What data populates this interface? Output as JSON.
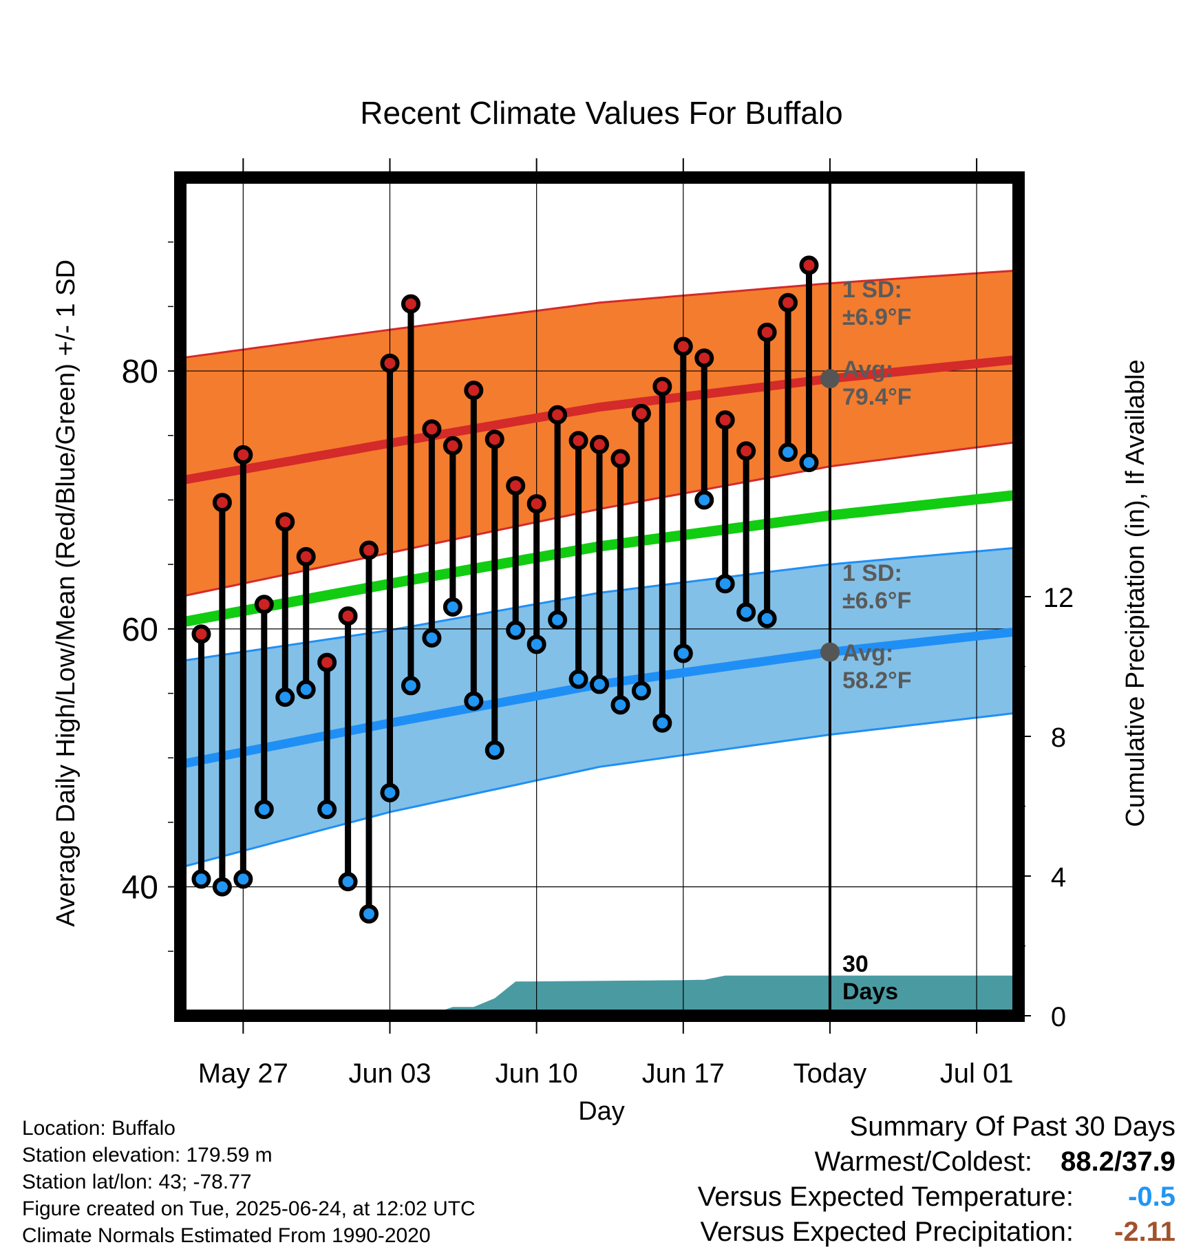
{
  "chart_data": {
    "type": "line",
    "title": "Recent Climate Values For Buffalo",
    "xlabel": "Day",
    "ylabel": "Average Daily High/Low/Mean (Red/Blue/Green) +/- 1 SD",
    "y2label": "Cumulative Precipitation (in), If Available",
    "x_ticks": [
      "May 27",
      "Jun 03",
      "Jun 10",
      "Jun 17",
      "Today",
      "Jul 01"
    ],
    "x_tick_days": [
      "2025-05-27",
      "2025-06-03",
      "2025-06-10",
      "2025-06-17",
      "2025-06-24",
      "2025-07-01"
    ],
    "xlim": [
      "2025-05-24",
      "2025-07-03"
    ],
    "ylim": [
      30,
      95
    ],
    "y_ticks": [
      40,
      60,
      80
    ],
    "y2lim": [
      0,
      24
    ],
    "y2_ticks": [
      0,
      4,
      8,
      12
    ],
    "grid": true,
    "daily": {
      "dates": [
        "2025-05-25",
        "2025-05-26",
        "2025-05-27",
        "2025-05-28",
        "2025-05-29",
        "2025-05-30",
        "2025-05-31",
        "2025-06-01",
        "2025-06-02",
        "2025-06-03",
        "2025-06-04",
        "2025-06-05",
        "2025-06-06",
        "2025-06-07",
        "2025-06-08",
        "2025-06-09",
        "2025-06-10",
        "2025-06-11",
        "2025-06-12",
        "2025-06-13",
        "2025-06-14",
        "2025-06-15",
        "2025-06-16",
        "2025-06-17",
        "2025-06-18",
        "2025-06-19",
        "2025-06-20",
        "2025-06-21",
        "2025-06-22",
        "2025-06-23"
      ],
      "high": [
        59.6,
        69.8,
        73.5,
        61.9,
        68.3,
        65.6,
        57.4,
        61.0,
        66.1,
        80.6,
        85.2,
        75.5,
        74.2,
        78.5,
        74.7,
        71.1,
        69.7,
        76.6,
        74.6,
        74.3,
        73.2,
        76.7,
        78.8,
        81.9,
        81.0,
        76.2,
        73.8,
        83.0,
        85.3,
        88.2
      ],
      "low": [
        40.6,
        40.0,
        40.6,
        46.0,
        54.7,
        55.3,
        46.0,
        40.4,
        37.9,
        47.3,
        55.6,
        59.3,
        61.7,
        54.4,
        50.6,
        59.9,
        58.8,
        60.7,
        56.1,
        55.7,
        54.1,
        55.2,
        52.7,
        58.1,
        70.0,
        63.5,
        61.3,
        60.8,
        73.7,
        72.9
      ]
    },
    "normals": {
      "dates": [
        "2025-05-24",
        "2025-06-03",
        "2025-06-13",
        "2025-06-24",
        "2025-07-03"
      ],
      "avg_high": [
        71.5,
        74.4,
        77.2,
        79.4,
        80.9
      ],
      "avg_low": [
        49.5,
        52.7,
        55.7,
        58.2,
        59.8
      ],
      "avg_mean": [
        60.5,
        63.5,
        66.4,
        68.8,
        70.4
      ],
      "high_upper": [
        81.0,
        83.2,
        85.3,
        86.8,
        87.8
      ],
      "high_lower": [
        62.5,
        65.9,
        69.3,
        72.6,
        74.5
      ],
      "low_upper": [
        57.5,
        59.9,
        62.8,
        65.0,
        66.3
      ],
      "low_lower": [
        41.5,
        45.8,
        49.3,
        51.8,
        53.5
      ]
    },
    "precip": {
      "dates": [
        "2025-05-24",
        "2025-05-29",
        "2025-06-03",
        "2025-06-05",
        "2025-06-06",
        "2025-06-07",
        "2025-06-08",
        "2025-06-09",
        "2025-06-17",
        "2025-06-18",
        "2025-06-19",
        "2025-07-03"
      ],
      "cumulative": [
        0.0,
        0.02,
        0.03,
        0.05,
        0.25,
        0.25,
        0.5,
        0.98,
        1.02,
        1.03,
        1.15,
        1.15
      ]
    },
    "annotations": {
      "high_sd_label": [
        "1 SD:",
        "±6.9°F"
      ],
      "high_avg_label": [
        "Avg:",
        "79.4°F"
      ],
      "low_sd_label": [
        "1 SD:",
        "±6.6°F"
      ],
      "low_avg_label": [
        "Avg:",
        "58.2°F"
      ],
      "precip_label": [
        "30",
        "Days"
      ]
    },
    "colors": {
      "high_band": "#f47c2e",
      "high_avg_line": "#d42a2a",
      "mean_line": "#11cc11",
      "low_band": "#82c0e8",
      "low_avg_line": "#1f8ff5",
      "precip_area": "#4a9aa2",
      "high_dot": "#cc2222",
      "low_dot": "#2196f3",
      "annotation": "#5a5a5a"
    }
  },
  "meta": {
    "location": "Location: Buffalo",
    "elevation": "Station elevation: 179.59 m",
    "latlon": "Station lat/lon: 43; -78.77",
    "created": "Figure created on Tue, 2025-06-24, at 12:02 UTC",
    "normals": "Climate Normals Estimated From 1990-2020"
  },
  "summary": {
    "title": "Summary Of Past 30 Days",
    "warm_cold_label": "Warmest/Coldest:",
    "warm_cold_value": "88.2/37.9",
    "temp_label": "Versus Expected Temperature:",
    "temp_value": "-0.5",
    "precip_label": "Versus Expected Precipitation:",
    "precip_value": "-2.11",
    "temp_color": "#2196f3",
    "precip_color": "#a0522d"
  }
}
